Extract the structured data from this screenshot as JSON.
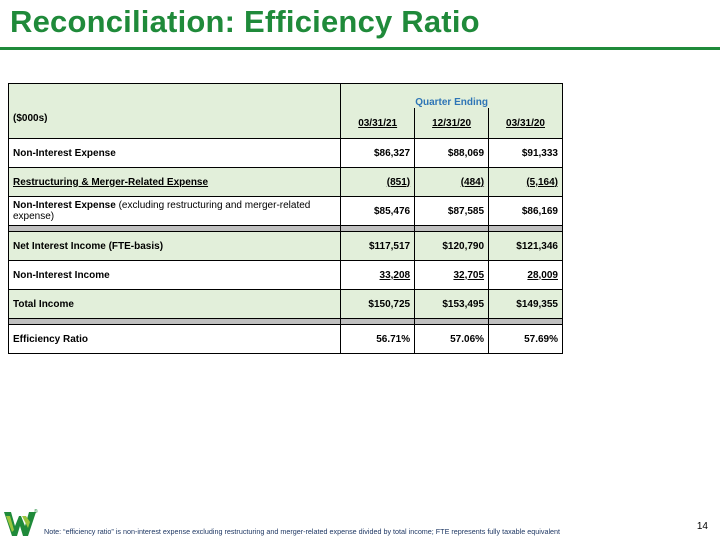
{
  "title": "Reconciliation: Efficiency Ratio",
  "colors": {
    "brand_green": "#1f8a3a",
    "header_blue": "#2e75b6",
    "light_green": "#e2efda",
    "separator_gray": "#bfbfbf"
  },
  "table": {
    "group_header": "Quarter Ending",
    "unit_label": "($000s)",
    "columns": [
      "03/31/21",
      "12/31/20",
      "03/31/20"
    ],
    "rows": [
      {
        "label": "Non-Interest Expense",
        "label_suffix": "",
        "values": [
          "$86,327",
          "$88,069",
          "$91,333"
        ]
      },
      {
        "label": "Restructuring & Merger-Related Expense",
        "label_suffix": "",
        "values": [
          "(851)",
          "(484)",
          "(5,164)"
        ]
      },
      {
        "label": "Non-Interest Expense",
        "label_suffix": " (excluding restructuring and merger-related expense)",
        "values": [
          "$85,476",
          "$87,585",
          "$86,169"
        ]
      },
      {
        "label": "Net Interest Income (FTE-basis)",
        "label_suffix": "",
        "values": [
          "$117,517",
          "$120,790",
          "$121,346"
        ]
      },
      {
        "label": "Non-Interest Income",
        "label_suffix": "",
        "values": [
          "33,208",
          "32,705",
          "28,009"
        ]
      },
      {
        "label": "Total Income",
        "label_suffix": "",
        "values": [
          "$150,725",
          "$153,495",
          "$149,355"
        ]
      },
      {
        "label": "Efficiency Ratio",
        "label_suffix": "",
        "values": [
          "56.71%",
          "57.06%",
          "57.69%"
        ]
      }
    ]
  },
  "footer": {
    "note": "Note: “efficiency ratio” is non-interest expense excluding restructuring and merger-related expense divided by total income; FTE represents fully taxable  equivalent",
    "page_number": "14",
    "logo_icon": "brand-w-logo-icon",
    "registered_mark": "®"
  }
}
